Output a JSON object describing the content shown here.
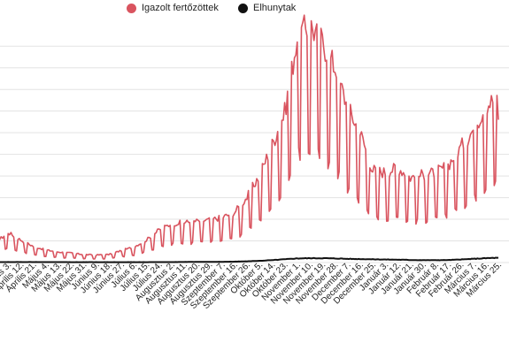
{
  "chart_data": {
    "type": "line",
    "title": "",
    "xlabel": "",
    "ylabel": "",
    "grid": true,
    "legend_position": "top-center",
    "x": [
      "Március 25.",
      "Április 3.",
      "Április 12.",
      "Április 21.",
      "Május 4.",
      "Május 13.",
      "Május 22.",
      "Május 31.",
      "Június 9.",
      "Június 18.",
      "Június 27.",
      "Július 6.",
      "Július 15.",
      "Július 24.",
      "Augusztus 2.",
      "Augusztus 11.",
      "Augusztus 20.",
      "Augusztus 29.",
      "Szeptember 7.",
      "Szeptember 16.",
      "Szeptember 26.",
      "Október 5.",
      "Október 14.",
      "Október 23.",
      "November 1.",
      "November 10.",
      "November 19.",
      "November 28.",
      "December 7.",
      "December 16.",
      "December 25.",
      "Január 3.",
      "Január 12.",
      "Január 21.",
      "Január 30.",
      "Február 8.",
      "Február 17.",
      "Február 26.",
      "Március 7.",
      "Március 16.",
      "Március 25."
    ],
    "series": [
      {
        "name": "Igazolt fertőzöttek",
        "color": "#d9545f",
        "values": [
          800,
          1200,
          900,
          650,
          500,
          420,
          380,
          320,
          300,
          320,
          480,
          620,
          900,
          1300,
          1550,
          1600,
          1650,
          1700,
          1800,
          2000,
          2600,
          3500,
          4700,
          6000,
          9000,
          9500,
          8800,
          7800,
          6200,
          5200,
          3700,
          3600,
          3800,
          3400,
          3500,
          3600,
          3900,
          4600,
          5300,
          6300,
          6600
        ]
      },
      {
        "name": "Elhunytak",
        "color": "#111111",
        "values": [
          20,
          22,
          22,
          22,
          20,
          20,
          18,
          18,
          18,
          18,
          18,
          18,
          18,
          20,
          22,
          25,
          28,
          30,
          35,
          40,
          55,
          80,
          110,
          150,
          190,
          200,
          200,
          190,
          170,
          160,
          150,
          140,
          130,
          120,
          110,
          110,
          115,
          140,
          170,
          200,
          220
        ]
      }
    ],
    "ylim": [
      0,
      10500
    ]
  }
}
